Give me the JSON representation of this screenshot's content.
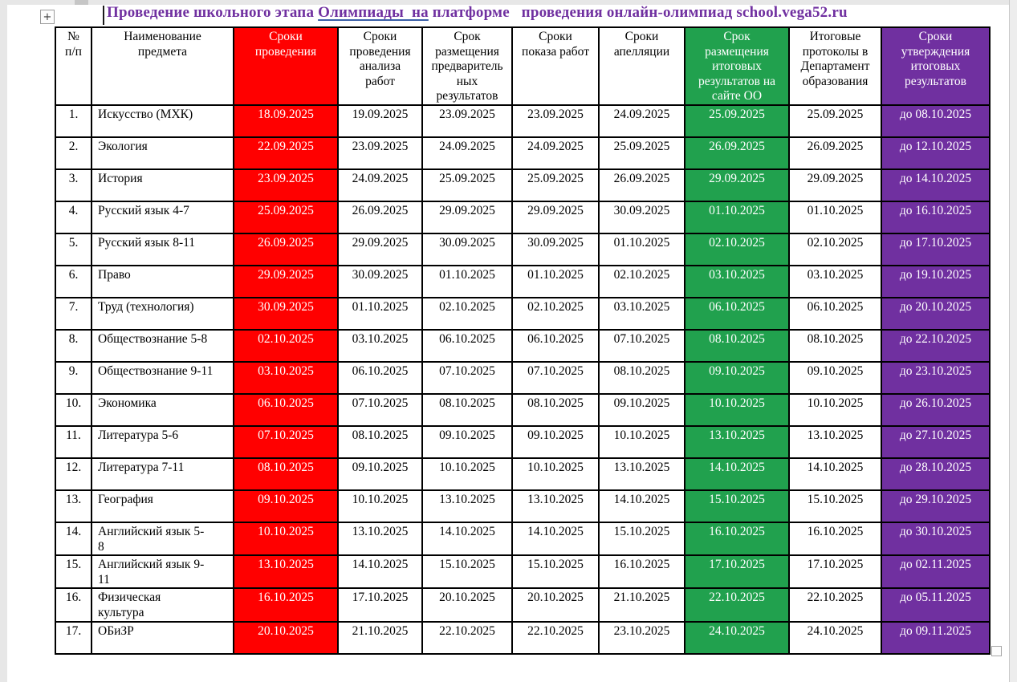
{
  "colors": {
    "accent_red": "#FF0000",
    "accent_green": "#21A14E",
    "accent_purple": "#7030A0",
    "title_text": "#7030A0",
    "underline_blue": "#3A5FA8",
    "canvas_edge_gray": "#E7E7E7"
  },
  "icons": {
    "move_handle_icon": "+",
    "resize_handle_icon": ""
  },
  "title": {
    "segments": [
      {
        "text": "Проведение школьного этапа ",
        "underline": false
      },
      {
        "text": "Олимпиады  на",
        "underline": true
      },
      {
        "text": " платформе   проведения онлайн-олимпиад school.vega52.ru",
        "underline": false
      }
    ]
  },
  "table": {
    "columns": [
      {
        "key": "num",
        "style": "plain",
        "label": "№\nп/п"
      },
      {
        "key": "subject",
        "style": "plain",
        "label": "Наименование\nпредмета"
      },
      {
        "key": "conduct",
        "style": "red",
        "label": "Сроки\nпроведения"
      },
      {
        "key": "analysis",
        "style": "plain",
        "label": "Сроки\nпроведения\nанализа\nработ"
      },
      {
        "key": "prelim",
        "style": "plain",
        "label": "Срок\nразмещения\nпредваритель\nных\nрезультатов"
      },
      {
        "key": "show",
        "style": "plain",
        "label": "Сроки\nпоказа работ"
      },
      {
        "key": "appeal",
        "style": "plain",
        "label": "Сроки\nапелляции"
      },
      {
        "key": "final",
        "style": "green",
        "label": "Срок\nразмещения\nитоговых\nрезультатов на\nсайте ОО"
      },
      {
        "key": "protocols",
        "style": "plain",
        "label": "Итоговые\nпротоколы в\nДепартамент\nобразования"
      },
      {
        "key": "approval",
        "style": "purple",
        "label": "Сроки\nутверждения\nитоговых\nрезультатов"
      }
    ],
    "rows": [
      {
        "num": "1.",
        "subject": "Искусство (МХК)",
        "dates": [
          "18.09.2025",
          "19.09.2025",
          "23.09.2025",
          "23.09.2025",
          "24.09.2025",
          "25.09.2025",
          "25.09.2025",
          "до 08.10.2025"
        ]
      },
      {
        "num": "2.",
        "subject": "Экология",
        "dates": [
          "22.09.2025",
          "23.09.2025",
          "24.09.2025",
          "24.09.2025",
          "25.09.2025",
          "26.09.2025",
          "26.09.2025",
          "до 12.10.2025"
        ]
      },
      {
        "num": "3.",
        "subject": "История",
        "dates": [
          "23.09.2025",
          "24.09.2025",
          "25.09.2025",
          "25.09.2025",
          "26.09.2025",
          "29.09.2025",
          "29.09.2025",
          "до 14.10.2025"
        ]
      },
      {
        "num": "4.",
        "subject": "Русский язык 4-7",
        "dates": [
          "25.09.2025",
          "26.09.2025",
          "29.09.2025",
          "29.09.2025",
          "30.09.2025",
          "01.10.2025",
          "01.10.2025",
          "до 16.10.2025"
        ]
      },
      {
        "num": "5.",
        "subject": "Русский язык 8-11",
        "dates": [
          "26.09.2025",
          "29.09.2025",
          "30.09.2025",
          "30.09.2025",
          "01.10.2025",
          "02.10.2025",
          "02.10.2025",
          "до 17.10.2025"
        ]
      },
      {
        "num": "6.",
        "subject": "Право",
        "dates": [
          "29.09.2025",
          "30.09.2025",
          "01.10.2025",
          "01.10.2025",
          "02.10.2025",
          "03.10.2025",
          "03.10.2025",
          "до 19.10.2025"
        ]
      },
      {
        "num": "7.",
        "subject": "Труд (технология)",
        "dates": [
          "30.09.2025",
          "01.10.2025",
          "02.10.2025",
          "02.10.2025",
          "03.10.2025",
          "06.10.2025",
          "06.10.2025",
          "до 20.10.2025"
        ]
      },
      {
        "num": "8.",
        "subject": "Обществознание 5-8",
        "dates": [
          "02.10.2025",
          "03.10.2025",
          "06.10.2025",
          "06.10.2025",
          "07.10.2025",
          "08.10.2025",
          "08.10.2025",
          "до 22.10.2025"
        ]
      },
      {
        "num": "9.",
        "subject": "Обществознание 9-11",
        "dates": [
          "03.10.2025",
          "06.10.2025",
          "07.10.2025",
          "07.10.2025",
          "08.10.2025",
          "09.10.2025",
          "09.10.2025",
          "до 23.10.2025"
        ]
      },
      {
        "num": "10.",
        "subject": "Экономика",
        "dates": [
          "06.10.2025",
          "07.10.2025",
          "08.10.2025",
          "08.10.2025",
          "09.10.2025",
          "10.10.2025",
          "10.10.2025",
          "до 26.10.2025"
        ]
      },
      {
        "num": "11.",
        "subject": "Литература 5-6",
        "dates": [
          "07.10.2025",
          "08.10.2025",
          "09.10.2025",
          "09.10.2025",
          "10.10.2025",
          "13.10.2025",
          "13.10.2025",
          "до 27.10.2025"
        ]
      },
      {
        "num": "12.",
        "subject": "Литература 7-11",
        "dates": [
          "08.10.2025",
          "09.10.2025",
          "10.10.2025",
          "10.10.2025",
          "13.10.2025",
          "14.10.2025",
          "14.10.2025",
          "до 28.10.2025"
        ]
      },
      {
        "num": "13.",
        "subject": "География",
        "dates": [
          "09.10.2025",
          "10.10.2025",
          "13.10.2025",
          "13.10.2025",
          "14.10.2025",
          "15.10.2025",
          "15.10.2025",
          "до 29.10.2025"
        ]
      },
      {
        "num": "14.",
        "subject": "Английский язык 5-\n8",
        "dates": [
          "10.10.2025",
          "13.10.2025",
          "14.10.2025",
          "14.10.2025",
          "15.10.2025",
          "16.10.2025",
          "16.10.2025",
          "до 30.10.2025"
        ]
      },
      {
        "num": "15.",
        "subject": "Английский язык 9-\n11",
        "dates": [
          "13.10.2025",
          "14.10.2025",
          "15.10.2025",
          "15.10.2025",
          "16.10.2025",
          "17.10.2025",
          "17.10.2025",
          "до 02.11.2025"
        ]
      },
      {
        "num": "16.",
        "subject": "Физическая\nкультура",
        "dates": [
          "16.10.2025",
          "17.10.2025",
          "20.10.2025",
          "20.10.2025",
          "21.10.2025",
          "22.10.2025",
          "22.10.2025",
          "до 05.11.2025"
        ]
      },
      {
        "num": "17.",
        "subject": "ОБиЗР",
        "dates": [
          "20.10.2025",
          "21.10.2025",
          "22.10.2025",
          "22.10.2025",
          "23.10.2025",
          "24.10.2025",
          "24.10.2025",
          "до 09.11.2025"
        ]
      }
    ]
  }
}
